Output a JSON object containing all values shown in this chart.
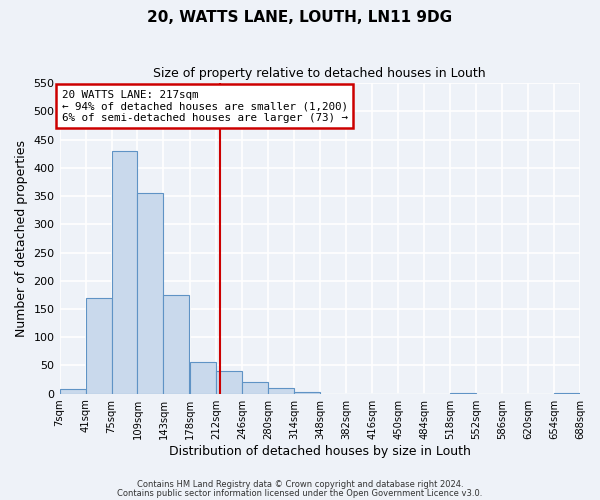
{
  "title": "20, WATTS LANE, LOUTH, LN11 9DG",
  "subtitle": "Size of property relative to detached houses in Louth",
  "xlabel": "Distribution of detached houses by size in Louth",
  "ylabel": "Number of detached properties",
  "bin_edges": [
    7,
    41,
    75,
    109,
    143,
    178,
    212,
    246,
    280,
    314,
    348,
    382,
    416,
    450,
    484,
    518,
    552,
    586,
    620,
    654,
    688
  ],
  "bar_heights": [
    8,
    170,
    430,
    355,
    175,
    57,
    40,
    20,
    10,
    3,
    0,
    0,
    0,
    0,
    0,
    2,
    0,
    0,
    0,
    2
  ],
  "bar_color": "#c9d9ec",
  "bar_edge_color": "#5f93c5",
  "tick_labels": [
    "7sqm",
    "41sqm",
    "75sqm",
    "109sqm",
    "143sqm",
    "178sqm",
    "212sqm",
    "246sqm",
    "280sqm",
    "314sqm",
    "348sqm",
    "382sqm",
    "416sqm",
    "450sqm",
    "484sqm",
    "518sqm",
    "552sqm",
    "586sqm",
    "620sqm",
    "654sqm",
    "688sqm"
  ],
  "ylim": [
    0,
    550
  ],
  "yticks": [
    0,
    50,
    100,
    150,
    200,
    250,
    300,
    350,
    400,
    450,
    500,
    550
  ],
  "vline_x": 217,
  "vline_color": "#cc0000",
  "annotation_title": "20 WATTS LANE: 217sqm",
  "annotation_line1": "← 94% of detached houses are smaller (1,200)",
  "annotation_line2": "6% of semi-detached houses are larger (73) →",
  "annotation_box_color": "#cc0000",
  "footnote1": "Contains HM Land Registry data © Crown copyright and database right 2024.",
  "footnote2": "Contains public sector information licensed under the Open Government Licence v3.0.",
  "background_color": "#eef2f8",
  "grid_color": "#ffffff"
}
